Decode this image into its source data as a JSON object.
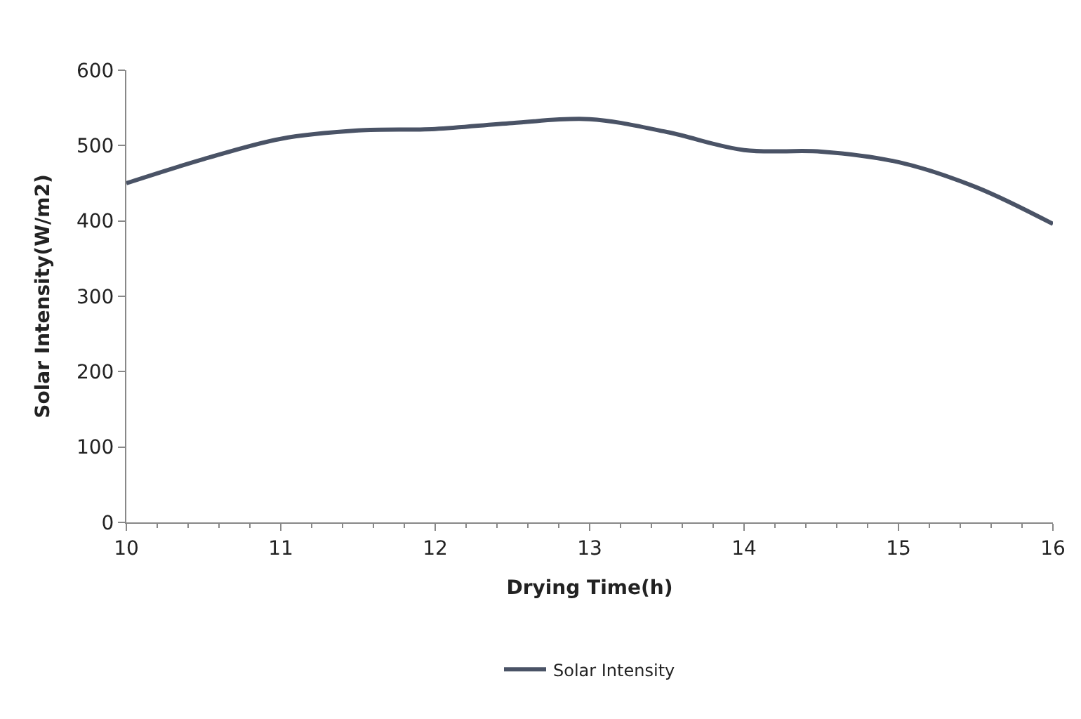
{
  "chart_data": {
    "type": "line",
    "xlabel": "Drying Time(h)",
    "ylabel": "Solar Intensity(W/m2)",
    "x": [
      10,
      10.5,
      11,
      11.5,
      12,
      12.5,
      13,
      13.5,
      14,
      14.5,
      15,
      15.5,
      16
    ],
    "series": [
      {
        "name": "Solar Intensity",
        "color": "#4a5366",
        "values": [
          450,
          482,
          509,
          520,
          522,
          530,
          535,
          518,
          494,
          492,
          478,
          445,
          396
        ]
      }
    ],
    "xlim": [
      10,
      16
    ],
    "xticks": [
      10,
      11,
      12,
      13,
      14,
      15,
      16
    ],
    "ylim": [
      0,
      600
    ],
    "yticks": [
      0,
      100,
      200,
      300,
      400,
      500,
      600
    ],
    "grid": false,
    "legend": "bottom",
    "marker": "none",
    "line_style": "solid"
  }
}
